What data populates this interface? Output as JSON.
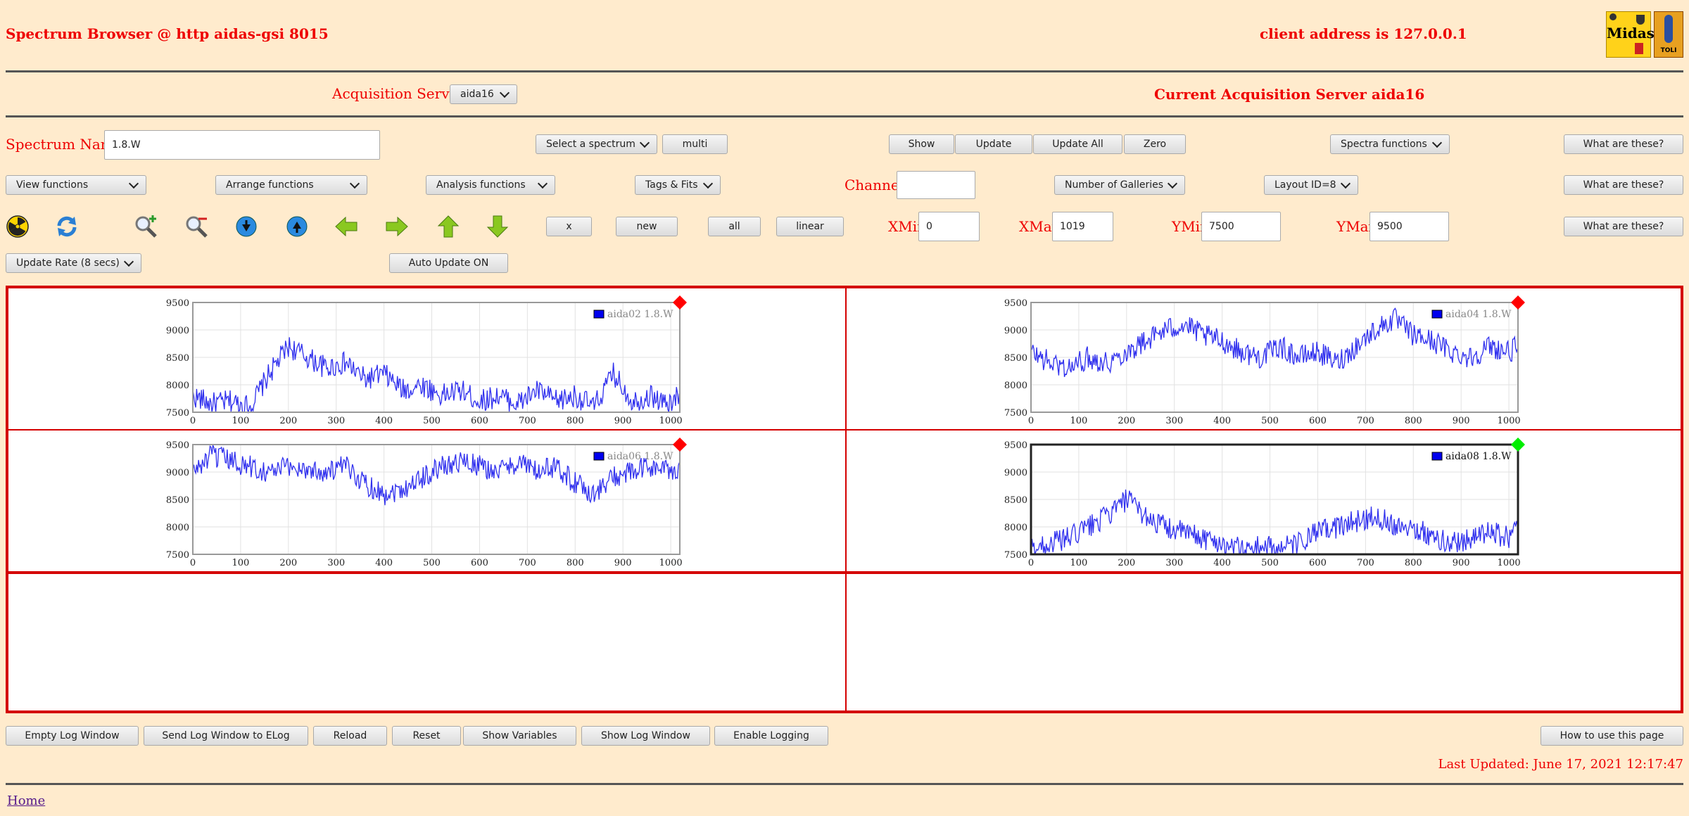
{
  "header": {
    "title": "Spectrum Browser @ http aidas-gsi 8015",
    "client": "client address is 127.0.0.1"
  },
  "acq": {
    "label": "Acquisition Servers",
    "selected": "aida16",
    "current": "Current Acquisition Server aida16"
  },
  "row1": {
    "spectrum_name_label": "Spectrum Name:",
    "spectrum_name_value": "1.8.W",
    "select_spectrum": "Select a spectrum",
    "multi": "multi",
    "show": "Show",
    "update": "Update",
    "update_all": "Update All",
    "zero": "Zero",
    "spectra_functions": "Spectra functions",
    "what": "What are these?"
  },
  "row2": {
    "view": "View functions",
    "arrange": "Arrange functions",
    "analysis": "Analysis functions",
    "tags": "Tags & Fits",
    "channel_label": "Channel:",
    "channel_value": "",
    "galleries": "Number of Galleries",
    "layout": "Layout ID=8",
    "what": "What are these?"
  },
  "row3": {
    "icons": [
      "radiation-icon",
      "refresh-icon",
      "zoom-in-icon",
      "zoom-out-icon",
      "scroll-down-icon",
      "scroll-up-icon",
      "arrow-left-icon",
      "arrow-right-icon",
      "arrow-up-icon",
      "arrow-down-icon"
    ],
    "x": "x",
    "new": "new",
    "all": "all",
    "linear": "linear",
    "xmin_label": "XMin",
    "xmin_value": "0",
    "xmax_label": "XMax",
    "xmax_value": "1019",
    "ymin_label": "YMin",
    "ymin_value": "7500",
    "ymax_label": "YMax",
    "ymax_value": "9500",
    "what": "What are these?"
  },
  "row4": {
    "update_rate": "Update Rate (8 secs)",
    "auto_update": "Auto Update ON"
  },
  "charts": [
    {
      "legend": "aida02 1.8.W",
      "status_color": "#ff0000",
      "highlight": false
    },
    {
      "legend": "aida04 1.8.W",
      "status_color": "#ff0000",
      "highlight": false
    },
    {
      "legend": "aida06 1.8.W",
      "status_color": "#ff0000",
      "highlight": false
    },
    {
      "legend": "aida08 1.8.W",
      "status_color": "#00ee00",
      "highlight": true
    }
  ],
  "chart_data": [
    {
      "type": "line",
      "series": [
        {
          "name": "aida02 1.8.W",
          "x": [
            0,
            40,
            80,
            120,
            160,
            200,
            240,
            280,
            320,
            360,
            400,
            440,
            480,
            520,
            560,
            600,
            640,
            680,
            720,
            760,
            800,
            840,
            880,
            920,
            960,
            1000,
            1019
          ],
          "values": [
            7800,
            7650,
            7700,
            7600,
            8200,
            8700,
            8500,
            8300,
            8400,
            8100,
            8200,
            7900,
            8000,
            7800,
            7900,
            7700,
            7800,
            7650,
            7900,
            7700,
            7800,
            7600,
            8200,
            7700,
            7800,
            7600,
            7900
          ]
        }
      ],
      "xlim": [
        0,
        1019
      ],
      "ylim": [
        7500,
        9500
      ],
      "xticks": [
        0,
        100,
        200,
        300,
        400,
        500,
        600,
        700,
        800,
        900,
        1000
      ],
      "yticks": [
        7500,
        8000,
        8500,
        9000,
        9500
      ],
      "grid": true,
      "legend": "top-right"
    },
    {
      "type": "line",
      "series": [
        {
          "name": "aida04 1.8.W",
          "x": [
            0,
            40,
            80,
            120,
            160,
            200,
            240,
            280,
            320,
            360,
            400,
            440,
            480,
            520,
            560,
            600,
            640,
            680,
            720,
            760,
            800,
            840,
            880,
            920,
            960,
            1000,
            1019
          ],
          "values": [
            8600,
            8400,
            8300,
            8500,
            8400,
            8600,
            8800,
            9000,
            9100,
            8900,
            8800,
            8600,
            8500,
            8700,
            8500,
            8600,
            8400,
            8700,
            9000,
            9200,
            8900,
            8800,
            8600,
            8500,
            8700,
            8600,
            8700
          ]
        }
      ],
      "xlim": [
        0,
        1019
      ],
      "ylim": [
        7500,
        9500
      ],
      "xticks": [
        0,
        100,
        200,
        300,
        400,
        500,
        600,
        700,
        800,
        900,
        1000
      ],
      "yticks": [
        7500,
        8000,
        8500,
        9000,
        9500
      ],
      "grid": true,
      "legend": "top-right"
    },
    {
      "type": "line",
      "series": [
        {
          "name": "aida06 1.8.W",
          "x": [
            0,
            40,
            80,
            120,
            160,
            200,
            240,
            280,
            320,
            360,
            400,
            440,
            480,
            520,
            560,
            600,
            640,
            680,
            720,
            760,
            800,
            840,
            880,
            920,
            960,
            1000,
            1019
          ],
          "values": [
            9000,
            9300,
            9200,
            9100,
            9000,
            9100,
            9050,
            9000,
            9100,
            8800,
            8600,
            8700,
            8900,
            9100,
            9200,
            9100,
            9000,
            9200,
            9000,
            9100,
            8800,
            8600,
            8900,
            9000,
            9100,
            9000,
            9100
          ]
        }
      ],
      "xlim": [
        0,
        1019
      ],
      "ylim": [
        7500,
        9500
      ],
      "xticks": [
        0,
        100,
        200,
        300,
        400,
        500,
        600,
        700,
        800,
        900,
        1000
      ],
      "yticks": [
        7500,
        8000,
        8500,
        9000,
        9500
      ],
      "grid": true,
      "legend": "top-right"
    },
    {
      "type": "line",
      "series": [
        {
          "name": "aida08 1.8.W",
          "x": [
            0,
            40,
            80,
            120,
            160,
            200,
            240,
            280,
            320,
            360,
            400,
            440,
            480,
            520,
            560,
            600,
            640,
            680,
            720,
            760,
            800,
            840,
            880,
            920,
            960,
            1000,
            1019
          ],
          "values": [
            7600,
            7700,
            7800,
            8000,
            8200,
            8500,
            8200,
            8000,
            7900,
            7800,
            7700,
            7600,
            7650,
            7600,
            7700,
            7900,
            8000,
            8100,
            8200,
            8050,
            8000,
            7800,
            7700,
            7800,
            7900,
            7800,
            8000
          ]
        }
      ],
      "xlim": [
        0,
        1019
      ],
      "ylim": [
        7500,
        9500
      ],
      "xticks": [
        0,
        100,
        200,
        300,
        400,
        500,
        600,
        700,
        800,
        900,
        1000
      ],
      "yticks": [
        7500,
        8000,
        8500,
        9000,
        9500
      ],
      "grid": true,
      "legend": "top-right"
    }
  ],
  "footer": {
    "buttons": [
      "Empty Log Window",
      "Send Log Window to ELog",
      "Reload",
      "Reset",
      "Show Variables",
      "Show Log Window",
      "Enable Logging"
    ],
    "howto": "How to use this page",
    "last_updated": "Last Updated: June 17, 2021 12:17:47",
    "home": "Home"
  },
  "logos": {
    "midas": "Midas",
    "toli": "TOLI"
  }
}
